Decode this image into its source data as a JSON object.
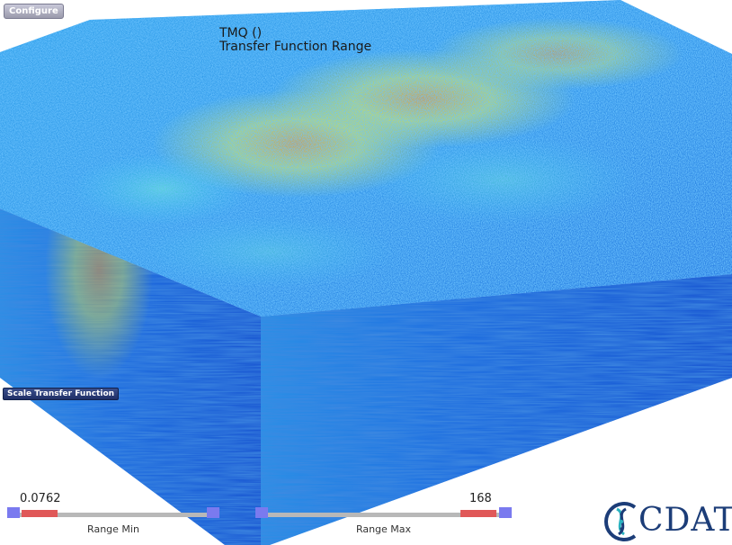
{
  "toolbar": {
    "configure_label": "Configure"
  },
  "actions": {
    "scale_transfer_function_label": "Scale Transfer Function"
  },
  "title": {
    "variable": "TMQ ()",
    "subtitle": "Transfer Function Range"
  },
  "range_min": {
    "label": "Range Min",
    "value": "0.0762"
  },
  "range_max": {
    "label": "Range Max",
    "value": "168"
  },
  "logo": {
    "text": "CDAT"
  },
  "colors": {
    "volume_blue": "#1f6fe0",
    "volume_cyan": "#2bc6ea",
    "volume_yellow": "#e9e83a",
    "volume_orange": "#f29a20",
    "slider_thumb": "#e05858",
    "slider_cap": "#7a7aef",
    "logo_blue": "#1c3d78"
  }
}
